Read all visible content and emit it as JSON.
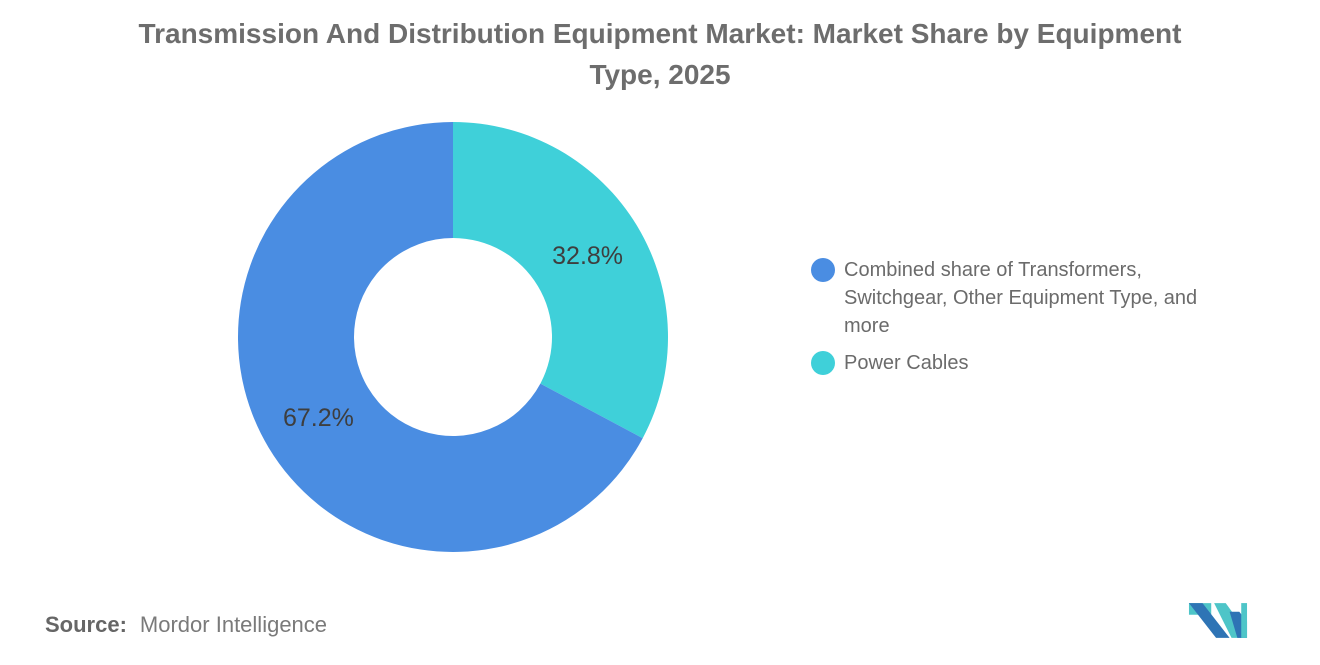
{
  "title": {
    "lines": [
      "Transmission And Distribution Equipment Market: Market Share by Equipment",
      "Type, 2025"
    ],
    "full": "Transmission And Distribution Equipment Market: Market Share by Equipment Type, 2025"
  },
  "chart_data": {
    "type": "pie",
    "subtype": "donut",
    "title": "Transmission And Distribution Equipment Market: Market Share by Equipment Type, 2025",
    "labels": [
      "Combined share of Transformers, Switchgear, Other Equipment Type, and more",
      "Power Cables"
    ],
    "values": [
      67.2,
      32.8
    ],
    "value_labels": [
      "67.2%",
      "32.8%"
    ],
    "colors": [
      "#4a8de2",
      "#3fd0d9"
    ],
    "label_color": "#3e3e3e",
    "start_angle": "12 o'clock",
    "direction": "clockwise (Power Cables slice first on the right)",
    "inner_radius_ratio": 0.46,
    "legend_position": "right",
    "background": "#ffffff"
  },
  "legend": {
    "items": [
      {
        "label": "Combined share of Transformers, Switchgear, Other Equipment Type, and more",
        "color": "#4a8de2"
      },
      {
        "label": "Power Cables",
        "color": "#3fd0d9"
      }
    ]
  },
  "source": {
    "label": "Source:",
    "value": "Mordor Intelligence"
  },
  "logo": {
    "alt": "Mordor Intelligence logo",
    "blue": "#2e74b5",
    "teal": "#4ec5c8"
  }
}
